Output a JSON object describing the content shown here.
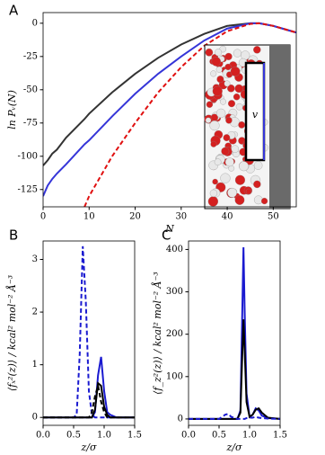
{
  "chart_data": [
    {
      "type": "line",
      "panel": "A",
      "xlabel": "N",
      "ylabel": "ln Pᵥ(N)",
      "inset_label": "v",
      "x": [
        0,
        1,
        2,
        3,
        5,
        9,
        10,
        15,
        20,
        25,
        30,
        35,
        40,
        45,
        47,
        50,
        53,
        55
      ],
      "series": [
        {
          "color": "#333333",
          "dash": false,
          "values": [
            -107,
            -103,
            -98,
            -95,
            -86,
            -72,
            -68,
            -52,
            -38,
            -26,
            -16,
            -8,
            -2,
            0,
            0,
            -2,
            -5,
            -7
          ]
        },
        {
          "color": "#3535d8",
          "dash": false,
          "values": [
            -130,
            -122,
            -117,
            -113,
            -106,
            -91,
            -88,
            -70,
            -53,
            -38,
            -25,
            -13,
            -4,
            0,
            0,
            -2,
            -5,
            -7
          ]
        },
        {
          "color": "#e01010",
          "dash": true,
          "values": [
            null,
            null,
            null,
            null,
            null,
            -138,
            -130,
            -100,
            -75,
            -52,
            -33,
            -17,
            -6,
            -0.5,
            0,
            -2,
            -5,
            -7
          ]
        }
      ],
      "xlim": [
        0,
        55
      ],
      "xticks": [
        0,
        10,
        20,
        30,
        40,
        50
      ],
      "ylim": [
        -138,
        8
      ],
      "yticks": [
        -125,
        -100,
        -75,
        -50,
        -25,
        0
      ]
    },
    {
      "type": "line",
      "panel": "B",
      "xlabel": "z/σ",
      "ylabel": "⟨fₓ²(z)⟩ / kcal² mol⁻² Å⁻³",
      "x": [
        0,
        0.5,
        0.55,
        0.6,
        0.65,
        0.7,
        0.75,
        0.8,
        0.85,
        0.9,
        0.95,
        1,
        1.05,
        1.1,
        1.2,
        1.5
      ],
      "series": [
        {
          "color": "#1a1ad0",
          "dash": true,
          "values": [
            0,
            0,
            0.05,
            1.2,
            3.25,
            2.2,
            0.5,
            0.05,
            0,
            0,
            0,
            0,
            0,
            0,
            0,
            0
          ]
        },
        {
          "color": "#1a1ad0",
          "dash": false,
          "values": [
            0,
            0,
            0,
            0,
            0,
            0,
            0,
            0,
            0.1,
            0.8,
            1.15,
            0.5,
            0.1,
            0.05,
            0,
            0
          ]
        },
        {
          "color": "#000000",
          "dash": false,
          "values": [
            0,
            0,
            0,
            0,
            0,
            0,
            0,
            0,
            0.15,
            0.65,
            0.6,
            0.2,
            0.05,
            0,
            0,
            0
          ]
        },
        {
          "color": "#000000",
          "dash": true,
          "values": [
            0,
            0,
            0,
            0,
            0,
            0,
            0,
            0.1,
            0.4,
            0.6,
            0.3,
            0.1,
            0,
            0,
            0,
            0
          ]
        }
      ],
      "xlim": [
        0,
        1.5
      ],
      "xticks": [
        {
          "value": 0,
          "label": "0.0"
        },
        {
          "value": 0.5,
          "label": "0.5"
        },
        {
          "value": 1,
          "label": "1.0"
        },
        {
          "value": 1.5,
          "label": "1.5"
        }
      ],
      "ylim": [
        -0.15,
        3.35
      ],
      "yticks": [
        0,
        1,
        2,
        3
      ]
    },
    {
      "type": "line",
      "panel": "C",
      "xlabel": "z/σ",
      "ylabel": "⟨f_z²(z)⟩ / kcal² mol⁻² Å⁻³",
      "x": [
        0,
        0.5,
        0.6,
        0.65,
        0.7,
        0.8,
        0.85,
        0.88,
        0.9,
        0.92,
        0.95,
        1,
        1.05,
        1.1,
        1.15,
        1.2,
        1.3,
        1.5
      ],
      "series": [
        {
          "color": "#1a1ad0",
          "dash": false,
          "values": [
            0,
            0,
            0,
            0,
            0,
            0,
            20,
            250,
            405,
            250,
            60,
            5,
            10,
            25,
            20,
            8,
            2,
            0
          ]
        },
        {
          "color": "#000000",
          "dash": false,
          "values": [
            0,
            0,
            0,
            0,
            0,
            0,
            15,
            150,
            235,
            160,
            40,
            5,
            10,
            22,
            25,
            15,
            3,
            0
          ]
        },
        {
          "color": "#1a1ad0",
          "dash": true,
          "values": [
            0,
            0,
            10,
            12,
            5,
            0,
            0,
            0,
            0,
            0,
            2,
            3,
            3,
            5,
            3,
            2,
            1,
            0
          ]
        }
      ],
      "xlim": [
        0,
        1.5
      ],
      "xticks": [
        {
          "value": 0,
          "label": "0.0"
        },
        {
          "value": 0.5,
          "label": "0.5"
        },
        {
          "value": 1,
          "label": "1.0"
        },
        {
          "value": 1.5,
          "label": "1.5"
        }
      ],
      "ylim": [
        -15,
        420
      ],
      "yticks": [
        0,
        100,
        200,
        300,
        400
      ]
    }
  ]
}
